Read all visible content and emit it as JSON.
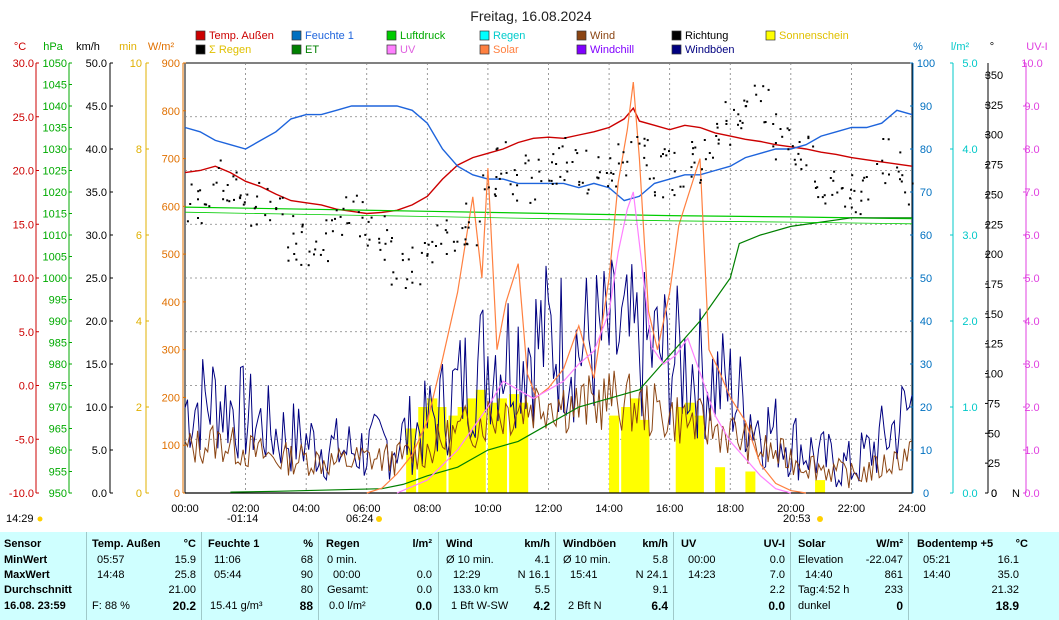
{
  "chart_data": {
    "type": "line",
    "title": "Freitag, 16.08.2024",
    "x_range": [
      0,
      24
    ],
    "x_ticks": [
      "00:00",
      "02:00",
      "04:00",
      "06:00",
      "08:00",
      "10:00",
      "12:00",
      "14:00",
      "16:00",
      "18:00",
      "20:00",
      "22:00",
      "24:00"
    ],
    "axes_left": [
      {
        "name": "temp",
        "unit": "°C",
        "color": "#cc0000",
        "range": [
          -10,
          30
        ],
        "ticks": [
          "30.0",
          "25.0",
          "20.0",
          "15.0",
          "10.0",
          "5.0",
          "0.0",
          "-5.0",
          "-10.0"
        ]
      },
      {
        "name": "pressure",
        "unit": "hPa",
        "color": "#00aa00",
        "range": [
          950,
          1050
        ],
        "ticks": [
          "1050",
          "1045",
          "1040",
          "1035",
          "1030",
          "1025",
          "1020",
          "1015",
          "1010",
          "1005",
          "1000",
          "995",
          "990",
          "985",
          "980",
          "975",
          "970",
          "965",
          "960",
          "955",
          "950"
        ]
      },
      {
        "name": "wind",
        "unit": "km/h",
        "color": "#000000",
        "range": [
          0,
          50
        ],
        "ticks": [
          "50.0",
          "45.0",
          "40.0",
          "35.0",
          "30.0",
          "25.0",
          "20.0",
          "15.0",
          "10.0",
          "5.0",
          "0.0"
        ]
      },
      {
        "name": "sunshine",
        "unit": "min",
        "color": "#e0b000",
        "range": [
          0,
          10
        ],
        "ticks": [
          "10",
          "8",
          "6",
          "4",
          "2",
          "0"
        ]
      },
      {
        "name": "solar",
        "unit": "W/m²",
        "color": "#e07000",
        "range": [
          0,
          900
        ],
        "ticks": [
          "900",
          "800",
          "700",
          "600",
          "500",
          "400",
          "300",
          "200",
          "100",
          "0"
        ]
      }
    ],
    "axes_right": [
      {
        "name": "humidity",
        "unit": "%",
        "color": "#0070c0",
        "range": [
          0,
          100
        ],
        "ticks": [
          "100",
          "90",
          "80",
          "70",
          "60",
          "50",
          "40",
          "30",
          "20",
          "10",
          "0"
        ]
      },
      {
        "name": "rain",
        "unit": "l/m²",
        "color": "#00c8c8",
        "range": [
          0,
          5
        ],
        "ticks": [
          "5.0",
          "4.0",
          "3.0",
          "2.0",
          "1.0",
          "0.0"
        ]
      },
      {
        "name": "direction",
        "unit": "°",
        "color": "#000000",
        "range": [
          0,
          360
        ],
        "ticks": [
          "350",
          "325",
          "300",
          "275",
          "250",
          "225",
          "200",
          "175",
          "150",
          "125",
          "100",
          "75",
          "50",
          "25",
          "0"
        ],
        "bottom_label": "N"
      },
      {
        "name": "uv",
        "unit": "UV-I",
        "color": "#e040e0",
        "range": [
          0,
          10
        ],
        "ticks": [
          "10.0",
          "9.0",
          "8.0",
          "7.0",
          "6.0",
          "5.0",
          "4.0",
          "3.0",
          "2.0",
          "1.0",
          "0.0"
        ]
      }
    ],
    "legend": [
      {
        "label": "Temp. Außen",
        "color": "#cc0000"
      },
      {
        "label": "Feuchte 1",
        "color": "#0070c0"
      },
      {
        "label": "Luftdruck",
        "color": "#00cc00"
      },
      {
        "label": "Regen",
        "color": "#00ffff"
      },
      {
        "label": "Wind",
        "color": "#8b4513"
      },
      {
        "label": "Richtung",
        "color": "#000000"
      },
      {
        "label": "Sonnenschein",
        "color": "#ffff00"
      },
      {
        "label": "Σ Regen",
        "color": "#000000"
      },
      {
        "label": "ET",
        "color": "#008000"
      },
      {
        "label": "UV",
        "color": "#ff80ff"
      },
      {
        "label": "Solar",
        "color": "#ff8040"
      },
      {
        "label": "Windchill",
        "color": "#8000ff"
      },
      {
        "label": "Windböen",
        "color": "#000080"
      }
    ],
    "series": [
      {
        "name": "Temp. Außen",
        "axis": "temp",
        "color": "#cc0000",
        "x": [
          0,
          0.5,
          1,
          1.5,
          2,
          2.5,
          3,
          3.5,
          4,
          4.5,
          5,
          5.5,
          6,
          6.5,
          7,
          7.5,
          8,
          8.5,
          9,
          9.5,
          10,
          10.5,
          11,
          11.5,
          12,
          12.5,
          13,
          13.5,
          14,
          14.5,
          14.8,
          15,
          15.5,
          16,
          16.5,
          17,
          17.5,
          18,
          18.5,
          19,
          19.5,
          20,
          20.5,
          21,
          21.5,
          22,
          22.5,
          23,
          23.5,
          24
        ],
        "y": [
          19.8,
          20.0,
          20.4,
          19.8,
          19.0,
          18.5,
          17.8,
          17.2,
          17.0,
          16.8,
          16.4,
          16.2,
          16.0,
          16.1,
          16.3,
          16.8,
          17.6,
          19.2,
          20.5,
          21.2,
          21.6,
          22.0,
          22.6,
          23.0,
          23.1,
          23.0,
          23.3,
          23.6,
          24.0,
          24.8,
          25.8,
          24.6,
          24.2,
          23.8,
          24.2,
          24.0,
          23.5,
          23.2,
          22.9,
          22.7,
          22.4,
          22.2,
          22.0,
          21.7,
          21.5,
          21.2,
          21.0,
          20.8,
          20.6,
          20.4
        ]
      },
      {
        "name": "Feuchte 1",
        "axis": "humidity",
        "color": "#1e64dc",
        "x": [
          0,
          0.5,
          1,
          1.5,
          2,
          2.5,
          3,
          3.5,
          4,
          4.5,
          5,
          5.5,
          6,
          6.5,
          7,
          7.5,
          8,
          8.5,
          9,
          9.5,
          10,
          10.5,
          11,
          11.5,
          12,
          12.5,
          13,
          13.5,
          14,
          14.5,
          15,
          15.5,
          16,
          16.5,
          17,
          17.5,
          18,
          18.5,
          19,
          19.5,
          20,
          20.5,
          21,
          21.5,
          22,
          22.5,
          23,
          23.5,
          24
        ],
        "y": [
          85,
          84,
          82,
          81,
          80,
          82,
          84,
          87,
          88,
          88,
          89,
          90,
          90,
          90,
          90,
          89,
          86,
          80,
          76,
          74,
          73,
          73,
          72,
          72,
          72,
          72,
          71,
          72,
          71,
          68,
          69,
          72,
          73,
          74,
          74,
          75,
          76,
          78,
          79,
          80,
          80,
          81,
          83,
          84,
          85,
          85,
          86,
          89,
          88
        ]
      },
      {
        "name": "Luftdruck",
        "axis": "pressure",
        "color": "#00cc00",
        "x": [
          0,
          4,
          8,
          12,
          16,
          20,
          24
        ],
        "y": [
          1016.5,
          1016.0,
          1015.5,
          1015.0,
          1014.5,
          1014.2,
          1013.8
        ]
      },
      {
        "name": "Σ Regen",
        "axis": "rain",
        "color": "#000000",
        "x": [
          0,
          24
        ],
        "y": [
          0,
          0
        ]
      },
      {
        "name": "ET",
        "axis": "rain",
        "color": "#008000",
        "x": [
          1.5,
          3,
          6.5,
          7.2,
          8,
          9,
          10,
          11,
          12,
          13,
          14,
          15,
          15.5,
          16,
          17,
          18,
          18.3,
          19,
          20,
          21,
          22,
          24
        ],
        "y": [
          0.01,
          0.02,
          0.05,
          0.1,
          0.2,
          0.3,
          0.5,
          0.6,
          0.8,
          1.0,
          1.1,
          1.2,
          1.4,
          1.6,
          2.0,
          2.5,
          2.9,
          3.0,
          3.1,
          3.15,
          3.2,
          3.2
        ]
      },
      {
        "name": "Solar",
        "axis": "solar",
        "color": "#ff8040",
        "x": [
          6,
          6.5,
          7,
          7.5,
          8,
          8.5,
          9,
          9.5,
          9.8,
          10,
          10.3,
          10.6,
          11,
          11.3,
          11.6,
          12,
          12.5,
          13,
          13.5,
          14,
          14.3,
          14.6,
          14.8,
          15,
          15.3,
          15.6,
          16,
          16.3,
          16.6,
          17,
          17.3,
          17.6,
          18,
          18.5,
          19,
          19.5,
          20,
          20.5
        ],
        "y": [
          0,
          10,
          40,
          80,
          150,
          280,
          420,
          620,
          450,
          680,
          300,
          400,
          480,
          250,
          200,
          220,
          260,
          350,
          240,
          450,
          650,
          760,
          860,
          700,
          380,
          300,
          420,
          560,
          620,
          700,
          300,
          260,
          200,
          150,
          60,
          20,
          5,
          0
        ]
      },
      {
        "name": "UV",
        "axis": "uv",
        "color": "#ff80ff",
        "x": [
          7,
          8,
          9,
          10,
          10.5,
          11,
          11.5,
          12,
          12.5,
          13,
          13.5,
          14,
          14.3,
          14.6,
          14.8,
          15,
          15.4,
          15.8,
          16.2,
          16.6,
          17,
          17.5,
          18,
          18.5,
          19,
          19.5,
          20
        ],
        "y": [
          0,
          0.3,
          1.0,
          2.0,
          2.6,
          2.4,
          2.2,
          2.4,
          2.6,
          3.0,
          3.3,
          4.2,
          5.6,
          6.6,
          7.0,
          5.8,
          3.4,
          3.0,
          3.2,
          3.6,
          2.8,
          1.8,
          1.2,
          0.8,
          0.4,
          0.1,
          0
        ]
      }
    ],
    "wind_series": {
      "name": "Wind",
      "axis": "wind",
      "color": "#8b4513",
      "x": [
        0,
        1,
        2,
        3,
        4,
        5,
        6,
        7,
        8,
        9,
        10,
        11,
        12,
        13,
        14,
        15,
        16,
        17,
        18,
        19,
        20,
        21,
        22,
        23,
        24
      ],
      "y": [
        5,
        6,
        5,
        4,
        4,
        3.5,
        4,
        4,
        5,
        7,
        9,
        10,
        11,
        10,
        11,
        10,
        9,
        8,
        7,
        5,
        4,
        3,
        2,
        3,
        5
      ]
    },
    "gust_series": {
      "name": "Windböen",
      "axis": "wind",
      "color": "#000080",
      "x": [
        0,
        1,
        2,
        3,
        4,
        5,
        6,
        7,
        8,
        9,
        10,
        11,
        12,
        13,
        14,
        15,
        16,
        17,
        18,
        19,
        20,
        21,
        22,
        23,
        24
      ],
      "y": [
        10,
        11,
        9,
        7,
        6,
        5,
        5,
        6,
        8,
        12,
        16,
        17,
        18,
        17,
        18,
        17,
        16,
        14,
        12,
        8,
        6,
        4,
        3,
        6,
        10
      ]
    },
    "direction_points": {
      "name": "Richtung",
      "axis": "direction",
      "color": "#000000",
      "x": [
        0,
        0.5,
        1,
        1.5,
        2,
        2.5,
        3,
        3.5,
        4,
        4.5,
        5,
        5.5,
        6,
        6.5,
        7,
        7.5,
        8,
        8.5,
        9,
        9.5,
        10,
        10.5,
        11,
        11.5,
        12,
        12.5,
        13,
        13.5,
        14,
        14.5,
        15,
        15.5,
        16,
        16.5,
        17,
        17.5,
        18,
        18.5,
        19,
        19.5,
        20,
        20.5,
        21,
        21.5,
        22,
        22.5,
        23,
        23.5,
        24
      ],
      "y": [
        240,
        245,
        260,
        250,
        235,
        245,
        230,
        215,
        210,
        215,
        225,
        230,
        225,
        215,
        195,
        190,
        200,
        210,
        215,
        225,
        260,
        275,
        265,
        260,
        270,
        280,
        275,
        265,
        270,
        285,
        280,
        265,
        270,
        275,
        280,
        290,
        310,
        315,
        325,
        300,
        290,
        280,
        255,
        250,
        250,
        250,
        280,
        270,
        260
      ]
    },
    "sunshine_bars": {
      "name": "Sonnenschein",
      "axis": "sunshine",
      "color": "#ffff00",
      "x": [
        7.3,
        7.7,
        8.0,
        8.3,
        8.7,
        9.0,
        9.3,
        9.6,
        10.0,
        10.3,
        10.7,
        11.0,
        14.0,
        14.4,
        14.7,
        15.0,
        16.2,
        16.5,
        16.8,
        17.5,
        18.5,
        20.8
      ],
      "y": [
        1.5,
        2.0,
        2.2,
        2.0,
        1.8,
        2.0,
        2.2,
        2.4,
        2.1,
        2.2,
        2.3,
        2.1,
        1.8,
        2.0,
        2.2,
        1.7,
        2.0,
        2.1,
        1.8,
        0.6,
        0.5,
        0.3
      ]
    },
    "bottom_markers": {
      "sunrise": "06:24",
      "sunset": "20:53",
      "moon_left": "14:29",
      "moon_right": "-01:14"
    }
  },
  "stats": {
    "sensor": {
      "header": "Sensor",
      "min": "MinWert",
      "max": "MaxWert",
      "avg": "Durchschnitt",
      "date": "16.08. 23:59"
    },
    "temp": {
      "header": "Temp. Außen",
      "unit": "°C",
      "min_time": "05:57",
      "min": "15.9",
      "max_time": "14:48",
      "max": "25.8",
      "avg": "21.00",
      "extra": "F: 88 %",
      "current": "20.2"
    },
    "humidity": {
      "header": "Feuchte 1",
      "unit": "%",
      "min_time": "11:06",
      "min": "68",
      "max_time": "05:44",
      "max": "90",
      "avg": "80",
      "extra": "15.41 g/m³",
      "current": "88"
    },
    "rain": {
      "header": "Regen",
      "unit": "l/m²",
      "r1_label": "0 min.",
      "r2_label": "00:00",
      "r2_val": "0.0",
      "r3_label": "Gesamt:",
      "r3_val": "0.0",
      "extra": "0.0 l/m²",
      "current": "0.0"
    },
    "wind": {
      "header": "Wind",
      "unit": "km/h",
      "r1_label": "Ø 10 min.",
      "r1_val": "4.1",
      "r2_label": "12:29",
      "r2_val": "N 16.1",
      "r3_label": "133.0 km",
      "r3_val": "5.5",
      "extra": "1 Bft W-SW",
      "current": "4.2"
    },
    "gust": {
      "header": "Windböen",
      "unit": "km/h",
      "r1_label": "Ø 10 min.",
      "r1_val": "5.8",
      "r2_label": "15:41",
      "r2_val": "N 24.1",
      "r3_val": "9.1",
      "extra": "2 Bft N",
      "current": "6.4"
    },
    "uv": {
      "header": "UV",
      "unit": "UV-I",
      "r1_label": "00:00",
      "r1_val": "0.0",
      "r2_label": "14:23",
      "r2_val": "7.0",
      "r3_val": "2.2",
      "current": "0.0"
    },
    "solar": {
      "header": "Solar",
      "unit": "W/m²",
      "r1_label": "Elevation",
      "r1_val": "-22.047",
      "r2_label": "14:40",
      "r2_val": "861",
      "r3_label": "Tag:4:52 h",
      "r3_val": "233",
      "extra": "dunkel",
      "current": "0"
    },
    "soil": {
      "header": "Bodentemp +5",
      "unit": "°C",
      "r1_label": "05:21",
      "r1_val": "16.1",
      "r2_label": "14:40",
      "r2_val": "35.0",
      "r3_val": "21.32",
      "current": "18.9"
    }
  }
}
